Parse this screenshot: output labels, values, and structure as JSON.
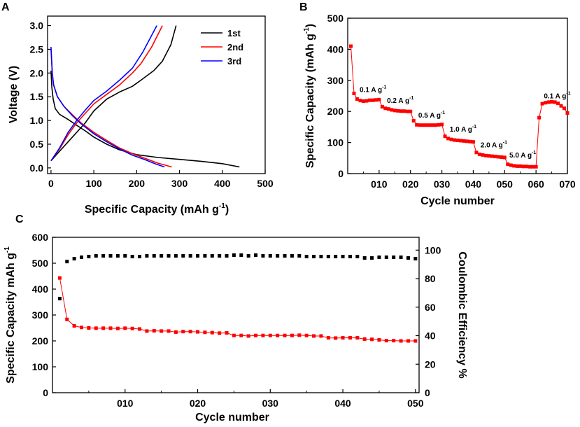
{
  "chart_data": [
    {
      "panel": "A",
      "type": "line",
      "xlabel": "Specific Capacity (mAh g",
      "xlabel_sup": "-1",
      "xlabel_end": ")",
      "ylabel": "Voltage (V)",
      "xlim": [
        -8,
        500
      ],
      "ylim": [
        -0.12,
        3.2
      ],
      "xticks": [
        "0",
        "100",
        "200",
        "300",
        "400",
        "500"
      ],
      "yticks": [
        "0.0",
        "0.5",
        "1.0",
        "1.5",
        "2.0",
        "2.5",
        "3.0"
      ],
      "legend_position": "top-right",
      "series": [
        {
          "name": "1st",
          "color": "#000000",
          "discharge": [
            [
              0,
              2.05
            ],
            [
              2,
              1.7
            ],
            [
              5,
              1.45
            ],
            [
              10,
              1.25
            ],
            [
              20,
              1.13
            ],
            [
              40,
              1.02
            ],
            [
              60,
              0.9
            ],
            [
              80,
              0.78
            ],
            [
              100,
              0.65
            ],
            [
              130,
              0.5
            ],
            [
              160,
              0.38
            ],
            [
              200,
              0.28
            ],
            [
              250,
              0.22
            ],
            [
              300,
              0.18
            ],
            [
              350,
              0.14
            ],
            [
              400,
              0.09
            ],
            [
              440,
              0.02
            ]
          ],
          "charge": [
            [
              0,
              0.15
            ],
            [
              20,
              0.35
            ],
            [
              50,
              0.65
            ],
            [
              80,
              0.95
            ],
            [
              100,
              1.2
            ],
            [
              130,
              1.45
            ],
            [
              160,
              1.6
            ],
            [
              190,
              1.72
            ],
            [
              210,
              1.85
            ],
            [
              240,
              2.05
            ],
            [
              260,
              2.25
            ],
            [
              280,
              2.6
            ],
            [
              292,
              3.0
            ]
          ]
        },
        {
          "name": "2nd",
          "color": "#ff0000",
          "discharge": [
            [
              0,
              2.5
            ],
            [
              3,
              2.0
            ],
            [
              6,
              1.75
            ],
            [
              15,
              1.5
            ],
            [
              30,
              1.3
            ],
            [
              50,
              1.12
            ],
            [
              70,
              0.95
            ],
            [
              100,
              0.75
            ],
            [
              130,
              0.58
            ],
            [
              160,
              0.42
            ],
            [
              190,
              0.3
            ],
            [
              220,
              0.2
            ],
            [
              250,
              0.1
            ],
            [
              282,
              0.02
            ]
          ],
          "charge": [
            [
              0,
              0.15
            ],
            [
              20,
              0.4
            ],
            [
              40,
              0.7
            ],
            [
              60,
              0.95
            ],
            [
              80,
              1.15
            ],
            [
              100,
              1.35
            ],
            [
              130,
              1.55
            ],
            [
              160,
              1.75
            ],
            [
              190,
              2.0
            ],
            [
              210,
              2.2
            ],
            [
              235,
              2.55
            ],
            [
              260,
              3.0
            ]
          ]
        },
        {
          "name": "3rd",
          "color": "#0000ff",
          "discharge": [
            [
              0,
              2.55
            ],
            [
              3,
              2.0
            ],
            [
              6,
              1.75
            ],
            [
              15,
              1.5
            ],
            [
              30,
              1.3
            ],
            [
              50,
              1.1
            ],
            [
              70,
              0.93
            ],
            [
              100,
              0.72
            ],
            [
              130,
              0.55
            ],
            [
              160,
              0.4
            ],
            [
              190,
              0.27
            ],
            [
              220,
              0.17
            ],
            [
              245,
              0.08
            ],
            [
              265,
              0.02
            ]
          ],
          "charge": [
            [
              0,
              0.15
            ],
            [
              20,
              0.42
            ],
            [
              40,
              0.75
            ],
            [
              60,
              1.0
            ],
            [
              80,
              1.22
            ],
            [
              100,
              1.42
            ],
            [
              130,
              1.62
            ],
            [
              160,
              1.85
            ],
            [
              190,
              2.1
            ],
            [
              215,
              2.45
            ],
            [
              247,
              3.0
            ]
          ]
        }
      ]
    },
    {
      "panel": "B",
      "type": "line",
      "xlabel": "Cycle number",
      "ylabel": "Specific Capacity (mAh g",
      "ylabel_sup": "-1",
      "ylabel_end": ")",
      "xlim": [
        0,
        70
      ],
      "ylim": [
        0,
        500
      ],
      "xticks": [
        "010",
        "020",
        "030",
        "040",
        "050",
        "060",
        "070"
      ],
      "yticks": [
        "0",
        "100",
        "200",
        "300",
        "400",
        "500"
      ],
      "color": "#ff0000",
      "x": [
        1,
        2,
        3,
        4,
        5,
        6,
        7,
        8,
        9,
        10,
        11,
        12,
        13,
        14,
        15,
        16,
        17,
        18,
        19,
        20,
        21,
        22,
        23,
        24,
        25,
        26,
        27,
        28,
        29,
        30,
        31,
        32,
        33,
        34,
        35,
        36,
        37,
        38,
        39,
        40,
        41,
        42,
        43,
        44,
        45,
        46,
        47,
        48,
        49,
        50,
        51,
        52,
        53,
        54,
        55,
        56,
        57,
        58,
        59,
        60,
        61,
        62,
        63,
        64,
        65,
        66,
        67,
        68,
        69,
        70
      ],
      "values": [
        410,
        258,
        240,
        235,
        233,
        234,
        236,
        236,
        237,
        238,
        215,
        210,
        208,
        205,
        203,
        202,
        201,
        201,
        200,
        200,
        170,
        157,
        156,
        156,
        156,
        156,
        156,
        156,
        157,
        158,
        120,
        113,
        110,
        108,
        107,
        106,
        105,
        104,
        103,
        102,
        68,
        62,
        60,
        58,
        57,
        56,
        55,
        54,
        53,
        52,
        30,
        27,
        25,
        24,
        24,
        23,
        23,
        22,
        22,
        22,
        180,
        225,
        228,
        230,
        231,
        230,
        226,
        218,
        210,
        195
      ],
      "annotations": [
        {
          "x": 3.8,
          "y": 262,
          "text": "0.1 A g",
          "sup": "-1"
        },
        {
          "x": 12.5,
          "y": 228,
          "text": "0.2 A g",
          "sup": "-1"
        },
        {
          "x": 22.5,
          "y": 180,
          "text": "0.5 A g",
          "sup": "-1"
        },
        {
          "x": 32.5,
          "y": 135,
          "text": "1.0 A g",
          "sup": "-1"
        },
        {
          "x": 42.3,
          "y": 85,
          "text": "2.0 A g",
          "sup": "-1"
        },
        {
          "x": 51.5,
          "y": 52,
          "text": "5.0 A g",
          "sup": "-1"
        },
        {
          "x": 62.5,
          "y": 242,
          "text": "0.1 A g",
          "sup": "-1"
        }
      ]
    },
    {
      "panel": "C",
      "type": "scatter",
      "xlabel": "Cycle number",
      "ylabel_left": "Specific Capacity mAh g",
      "ylabel_left_sup": "-1",
      "ylabel_right": "Coulombic Efficiency %",
      "xlim": [
        0,
        50.5
      ],
      "ylim_left": [
        0,
        600
      ],
      "ylim_right": [
        0,
        109
      ],
      "xticks": [
        "010",
        "020",
        "030",
        "040",
        "050"
      ],
      "yticks_left": [
        "0",
        "100",
        "200",
        "300",
        "400",
        "500",
        "600"
      ],
      "yticks_right": [
        "0",
        "20",
        "40",
        "60",
        "80",
        "100"
      ],
      "series": [
        {
          "name": "Specific Capacity",
          "axis": "left",
          "color": "#ff0000",
          "connected": true,
          "x": [
            1,
            2,
            3,
            4,
            5,
            6,
            7,
            8,
            9,
            10,
            11,
            12,
            13,
            14,
            15,
            16,
            17,
            18,
            19,
            20,
            21,
            22,
            23,
            24,
            25,
            26,
            27,
            28,
            29,
            30,
            31,
            32,
            33,
            34,
            35,
            36,
            37,
            38,
            39,
            40,
            41,
            42,
            43,
            44,
            45,
            46,
            47,
            48,
            49,
            50
          ],
          "values": [
            443,
            283,
            258,
            252,
            250,
            249,
            249,
            249,
            248,
            249,
            248,
            246,
            238,
            239,
            238,
            238,
            234,
            236,
            236,
            235,
            233,
            232,
            230,
            231,
            221,
            221,
            219,
            221,
            221,
            221,
            221,
            221,
            221,
            222,
            221,
            219,
            219,
            212,
            211,
            212,
            212,
            212,
            207,
            206,
            204,
            201,
            201,
            200,
            200,
            200
          ]
        },
        {
          "name": "Coulombic Efficiency",
          "axis": "right",
          "color": "#000000",
          "connected": false,
          "x": [
            1,
            2,
            3,
            4,
            5,
            6,
            7,
            8,
            9,
            10,
            11,
            12,
            13,
            14,
            15,
            16,
            17,
            18,
            19,
            20,
            21,
            22,
            23,
            24,
            25,
            26,
            27,
            28,
            29,
            30,
            31,
            32,
            33,
            34,
            35,
            36,
            37,
            38,
            39,
            40,
            41,
            42,
            43,
            44,
            45,
            46,
            47,
            48,
            49,
            50
          ],
          "values": [
            66,
            92,
            94,
            95,
            95.5,
            96,
            96,
            96,
            96,
            96,
            95.5,
            95.5,
            96,
            96,
            96,
            96,
            96,
            96,
            96,
            96,
            96,
            96,
            96,
            96,
            96.5,
            96.5,
            96,
            96.5,
            96,
            96,
            96,
            96,
            96,
            96,
            95.5,
            95.5,
            95.5,
            95.5,
            95.5,
            95.5,
            95.5,
            95.5,
            94.5,
            94.5,
            95,
            95,
            95,
            95,
            94.5,
            94
          ]
        }
      ]
    }
  ]
}
